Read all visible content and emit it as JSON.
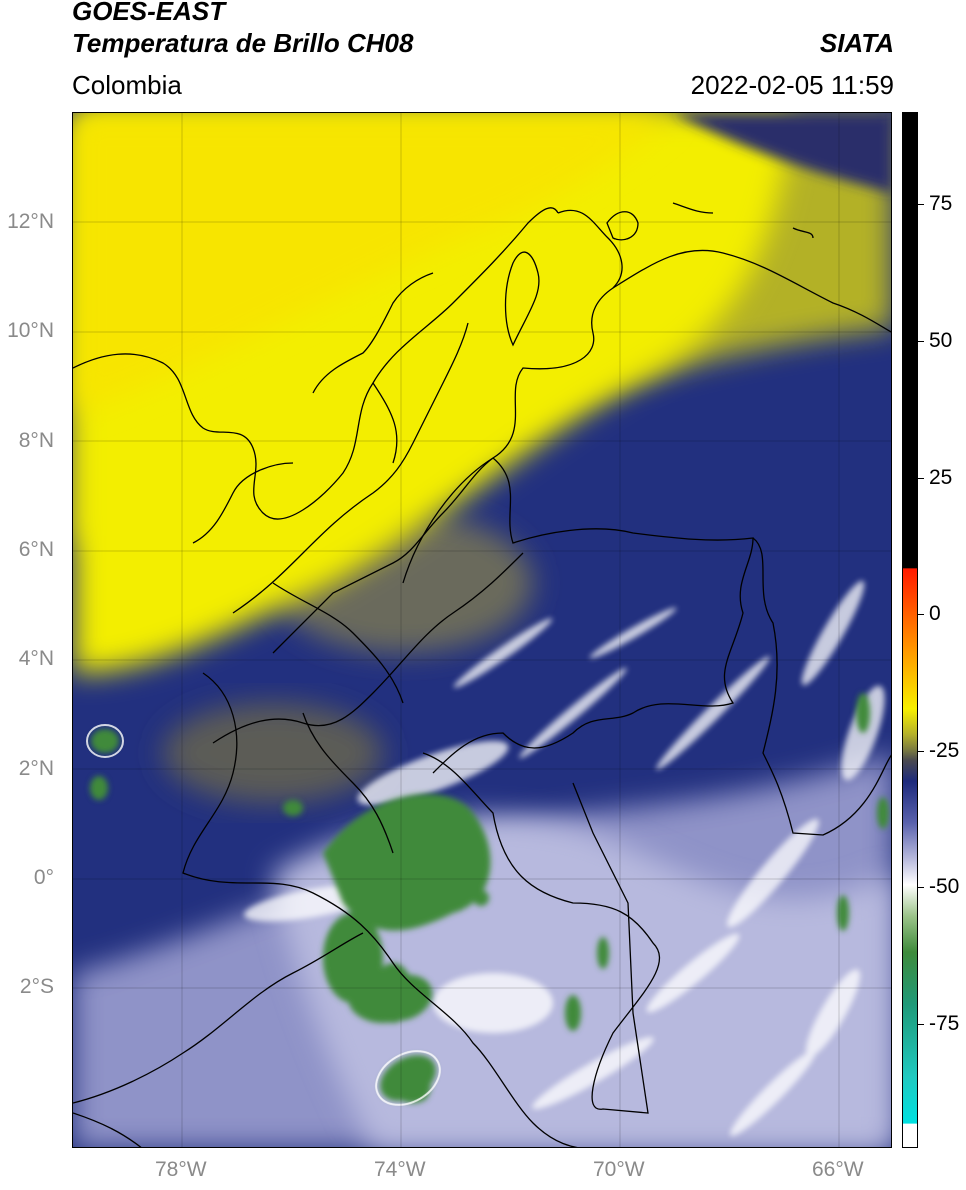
{
  "header": {
    "title_line1": "GOES-EAST",
    "title_line2": "Temperatura de Brillo CH08",
    "region": "Colombia",
    "source": "SIATA",
    "timestamp": "2022-02-05 11:59"
  },
  "map": {
    "lat_labels": [
      "12°N",
      "10°N",
      "8°N",
      "6°N",
      "4°N",
      "2°N",
      "0°",
      "2°S"
    ],
    "lon_labels": [
      "78°W",
      "74°W",
      "70°W",
      "66°W"
    ],
    "colors": {
      "warm_yellow": "#f5f000",
      "olive": "#b8b526",
      "grey": "#5a5a56",
      "navy": "#1e2a80",
      "lavender": "#b9bbdf",
      "green": "#3c8a3a",
      "border": "#000000"
    }
  },
  "colorbar": {
    "tick_labels": [
      "75",
      "50",
      "25",
      "0",
      "-25",
      "-50",
      "-75"
    ],
    "range": [
      -95,
      90
    ]
  }
}
